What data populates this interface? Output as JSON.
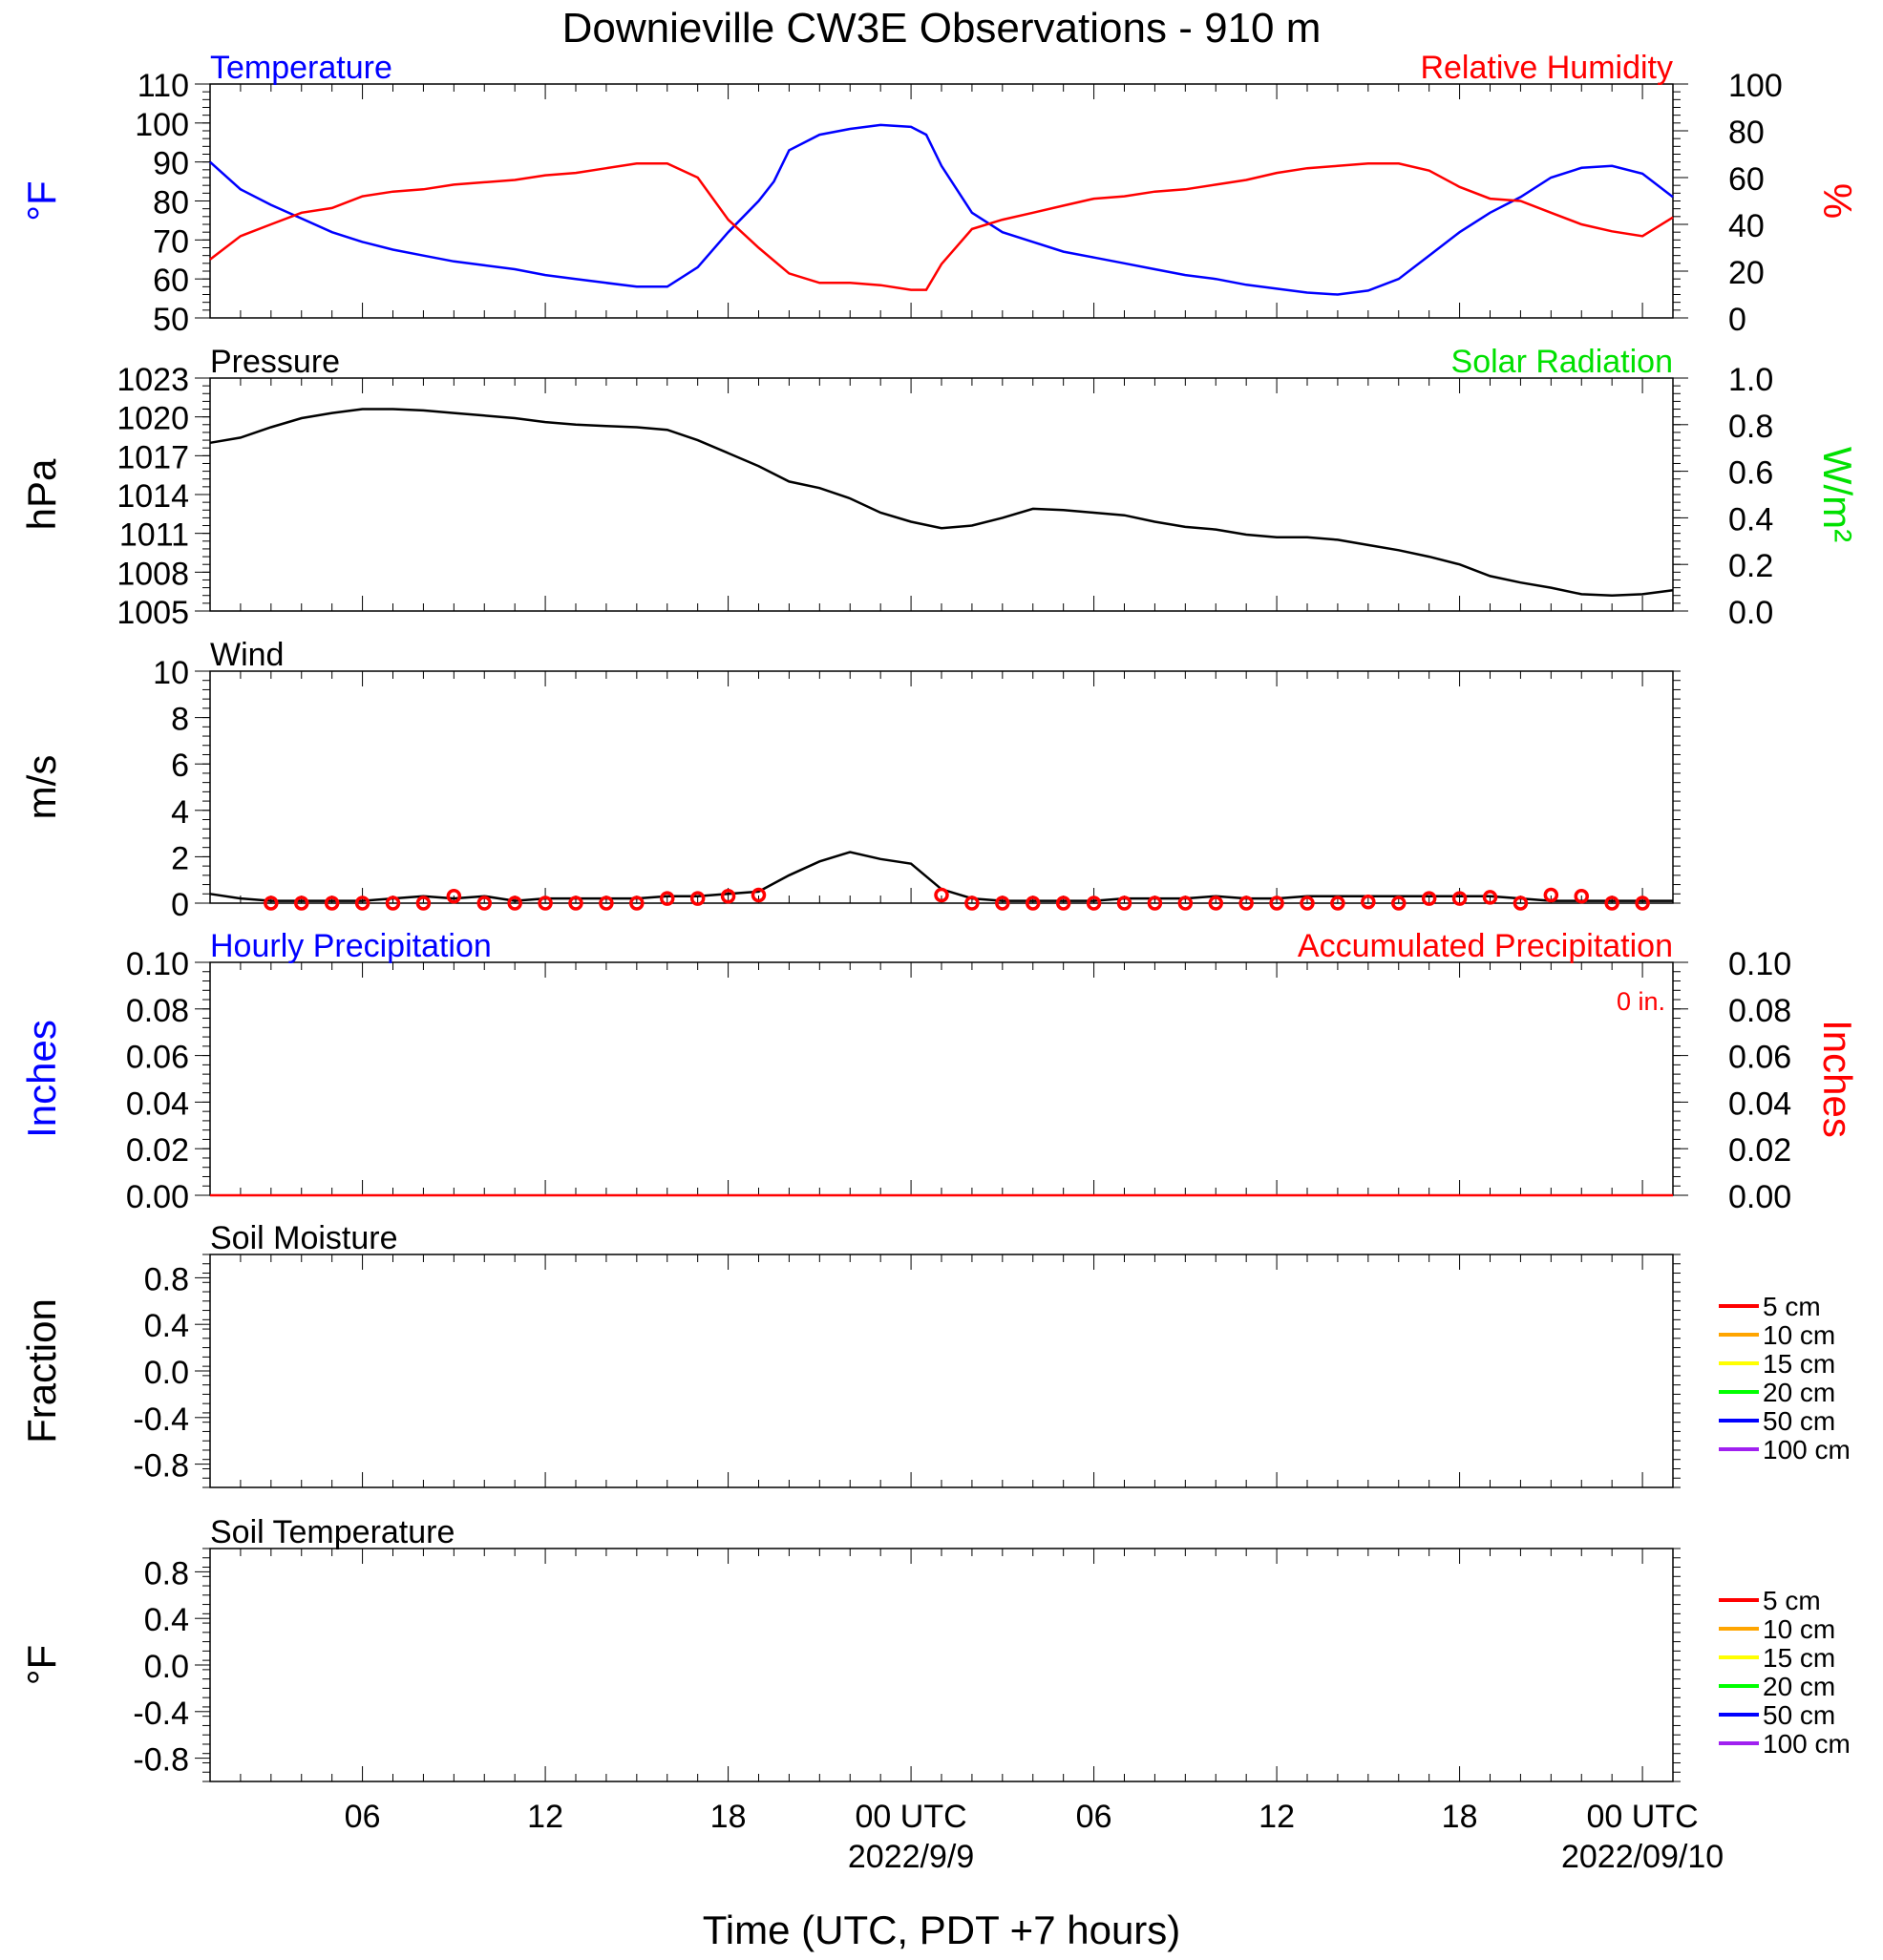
{
  "title": "Downieville CW3E Observations - 910 m",
  "x_axis": {
    "title": "Time (UTC, PDT +7 hours)",
    "range_hours": [
      0,
      48
    ],
    "tick_hours": [
      5,
      11,
      17,
      23,
      29,
      35,
      41,
      47
    ],
    "tick_labels": [
      "06",
      "12",
      "18",
      "00 UTC",
      "06",
      "12",
      "18",
      "00 UTC"
    ],
    "date_labels": [
      {
        "hour": 23,
        "text": "2022/9/9"
      },
      {
        "hour": 47,
        "text": "2022/09/10"
      }
    ]
  },
  "colors": {
    "blue": "#0000ff",
    "red": "#ff0000",
    "green": "#00e000",
    "black": "#000000"
  },
  "chart_data": [
    {
      "type": "line",
      "panel": "temperature-humidity",
      "left_title": "Temperature",
      "right_title": "Relative Humidity",
      "ylabel": "°F",
      "ylabel_right": "%",
      "ylim": [
        50,
        110
      ],
      "yticks": [
        50,
        60,
        70,
        80,
        90,
        100,
        110
      ],
      "ylim_right": [
        0,
        100
      ],
      "yticks_right": [
        0,
        20,
        40,
        60,
        80,
        100
      ],
      "series": [
        {
          "name": "Temperature",
          "axis": "left",
          "color": "#0000ff",
          "x": [
            0,
            1,
            2,
            3,
            4,
            5,
            6,
            7,
            8,
            9,
            10,
            11,
            12,
            13,
            14,
            15,
            16,
            17,
            18,
            18.5,
            19,
            20,
            21,
            22,
            23,
            23.5,
            24,
            25,
            26,
            27,
            28,
            29,
            30,
            31,
            32,
            33,
            34,
            35,
            36,
            37,
            38,
            39,
            40,
            41,
            42,
            43,
            44,
            45,
            46,
            47,
            48
          ],
          "y": [
            90,
            83,
            79,
            75.5,
            72,
            69.5,
            67.5,
            66,
            64.5,
            63.5,
            62.5,
            61,
            60,
            59,
            58,
            58,
            63,
            72,
            80,
            85,
            93,
            97,
            98.5,
            99.5,
            99,
            97,
            89,
            77,
            72,
            69.5,
            67,
            65.5,
            64,
            62.5,
            61,
            60,
            58.5,
            57.5,
            56.5,
            56,
            57,
            60,
            66,
            72,
            77,
            81,
            86,
            88.5,
            89,
            87,
            81
          ]
        },
        {
          "name": "Relative Humidity",
          "axis": "right",
          "color": "#ff0000",
          "x": [
            0,
            1,
            2,
            3,
            4,
            5,
            6,
            7,
            8,
            9,
            10,
            11,
            12,
            13,
            14,
            15,
            16,
            17,
            18,
            19,
            20,
            21,
            22,
            23,
            23.5,
            24,
            25,
            26,
            27,
            28,
            29,
            30,
            31,
            32,
            33,
            34,
            35,
            36,
            37,
            38,
            39,
            40,
            41,
            42,
            43,
            44,
            45,
            46,
            47,
            48
          ],
          "y": [
            25,
            35,
            40,
            45,
            47,
            52,
            54,
            55,
            57,
            58,
            59,
            61,
            62,
            64,
            66,
            66,
            60,
            42,
            30,
            19,
            15,
            15,
            14,
            12,
            12,
            23,
            38,
            42,
            45,
            48,
            51,
            52,
            54,
            55,
            57,
            59,
            62,
            64,
            65,
            66,
            66,
            63,
            56,
            51,
            50,
            45,
            40,
            37,
            35,
            43
          ]
        }
      ]
    },
    {
      "type": "line",
      "panel": "pressure-solar",
      "left_title": "Pressure",
      "right_title": "Solar Radiation",
      "ylabel": "hPa",
      "ylabel_right": "W/m²",
      "ylim": [
        1005,
        1023
      ],
      "yticks": [
        1005,
        1008,
        1011,
        1014,
        1017,
        1020,
        1023
      ],
      "ylim_right": [
        0.0,
        1.0
      ],
      "yticks_right": [
        "0.0",
        "0.2",
        "0.4",
        "0.6",
        "0.8",
        "1.0"
      ],
      "series": [
        {
          "name": "Pressure",
          "axis": "left",
          "color": "#000000",
          "x": [
            0,
            1,
            2,
            3,
            4,
            5,
            6,
            7,
            8,
            9,
            10,
            11,
            12,
            13,
            14,
            15,
            16,
            17,
            18,
            19,
            20,
            21,
            22,
            23,
            24,
            25,
            26,
            27,
            28,
            29,
            30,
            31,
            32,
            33,
            34,
            35,
            36,
            37,
            38,
            39,
            40,
            41,
            42,
            43,
            44,
            45,
            46,
            47,
            48
          ],
          "y": [
            1018,
            1018.4,
            1019.2,
            1019.9,
            1020.3,
            1020.6,
            1020.6,
            1020.5,
            1020.3,
            1020.1,
            1019.9,
            1019.6,
            1019.4,
            1019.3,
            1019.2,
            1019,
            1018.2,
            1017.2,
            1016.2,
            1015,
            1014.5,
            1013.7,
            1012.6,
            1011.9,
            1011.4,
            1011.6,
            1012.2,
            1012.9,
            1012.8,
            1012.6,
            1012.4,
            1011.9,
            1011.5,
            1011.3,
            1010.9,
            1010.7,
            1010.7,
            1010.5,
            1010.1,
            1009.7,
            1009.2,
            1008.6,
            1007.7,
            1007.2,
            1006.8,
            1006.3,
            1006.2,
            1006.3,
            1006.6
          ]
        }
      ]
    },
    {
      "type": "line",
      "panel": "wind",
      "left_title": "Wind",
      "ylabel": "m/s",
      "ylim": [
        0,
        10
      ],
      "yticks": [
        0,
        2,
        4,
        6,
        8,
        10
      ],
      "series": [
        {
          "name": "Wind speed",
          "axis": "left",
          "color": "#000000",
          "x": [
            0,
            1,
            2,
            3,
            4,
            5,
            6,
            7,
            8,
            9,
            10,
            11,
            12,
            13,
            14,
            15,
            16,
            17,
            18,
            19,
            20,
            21,
            22,
            23,
            24,
            25,
            26,
            27,
            28,
            29,
            30,
            31,
            32,
            33,
            34,
            35,
            36,
            37,
            38,
            39,
            40,
            41,
            42,
            43,
            44,
            45,
            46,
            47,
            48
          ],
          "y": [
            0.4,
            0.2,
            0.1,
            0.1,
            0.1,
            0.1,
            0.2,
            0.3,
            0.2,
            0.3,
            0.1,
            0.2,
            0.2,
            0.2,
            0.2,
            0.3,
            0.3,
            0.4,
            0.5,
            1.2,
            1.8,
            2.2,
            1.9,
            1.7,
            0.6,
            0.2,
            0.1,
            0.1,
            0.1,
            0.1,
            0.2,
            0.2,
            0.2,
            0.3,
            0.2,
            0.2,
            0.3,
            0.3,
            0.3,
            0.3,
            0.3,
            0.3,
            0.3,
            0.2,
            0.1,
            0.1,
            0.1,
            0.1,
            0.1
          ]
        },
        {
          "name": "Hourly mean",
          "axis": "left",
          "color": "#ff0000",
          "marker": "circle",
          "x": [
            2,
            3,
            4,
            5,
            6,
            7,
            8,
            9,
            10,
            11,
            12,
            13,
            14,
            15,
            16,
            17,
            18,
            24,
            25,
            26,
            27,
            28,
            29,
            30,
            31,
            32,
            33,
            34,
            35,
            36,
            37,
            38,
            39,
            40,
            41,
            42,
            43,
            44,
            45,
            46,
            47
          ],
          "y": [
            0.0,
            0.0,
            0.0,
            0.0,
            0.0,
            0.0,
            0.3,
            0.0,
            0.0,
            0.0,
            0.0,
            0.0,
            0.0,
            0.2,
            0.2,
            0.3,
            0.35,
            0.35,
            0.0,
            0.0,
            0.0,
            0.0,
            0.0,
            0.0,
            0.0,
            0.0,
            0.0,
            0.0,
            0.0,
            0.0,
            0.0,
            0.05,
            0.0,
            0.2,
            0.2,
            0.25,
            0.0,
            0.35,
            0.3,
            0.0,
            0.0
          ]
        }
      ]
    },
    {
      "type": "line",
      "panel": "precipitation",
      "left_title": "Hourly Precipitation",
      "right_title": "Accumulated Precipitation",
      "annotation": "0 in.",
      "ylabel": "Inches",
      "ylabel_right": "Inches",
      "ylim": [
        0,
        0.1
      ],
      "yticks": [
        "0.00",
        "0.02",
        "0.04",
        "0.06",
        "0.08",
        "0.10"
      ],
      "ylim_right": [
        0,
        0.1
      ],
      "yticks_right": [
        "0.00",
        "0.02",
        "0.04",
        "0.06",
        "0.08",
        "0.10"
      ],
      "series": [
        {
          "name": "Accumulated Precipitation",
          "axis": "right",
          "color": "#ff0000",
          "x": [
            0,
            48
          ],
          "y": [
            0,
            0
          ]
        }
      ]
    },
    {
      "type": "line",
      "panel": "soil-moisture",
      "left_title": "Soil Moisture",
      "ylabel": "Fraction",
      "ylim": [
        -1,
        1
      ],
      "yticks": [
        "-0.8",
        "-0.4",
        "0.0",
        "0.4",
        "0.8"
      ],
      "legend": [
        {
          "label": "5 cm",
          "color": "#ff0000"
        },
        {
          "label": "10 cm",
          "color": "#ffa500"
        },
        {
          "label": "15 cm",
          "color": "#ffff00"
        },
        {
          "label": "20 cm",
          "color": "#00ff00"
        },
        {
          "label": "50 cm",
          "color": "#0000ff"
        },
        {
          "label": "100 cm",
          "color": "#a020f0"
        }
      ],
      "series": []
    },
    {
      "type": "line",
      "panel": "soil-temperature",
      "left_title": "Soil Temperature",
      "ylabel": "°F",
      "ylim": [
        -1,
        1
      ],
      "yticks": [
        "-0.8",
        "-0.4",
        "0.0",
        "0.4",
        "0.8"
      ],
      "legend": [
        {
          "label": "5 cm",
          "color": "#ff0000"
        },
        {
          "label": "10 cm",
          "color": "#ffa500"
        },
        {
          "label": "15 cm",
          "color": "#ffff00"
        },
        {
          "label": "20 cm",
          "color": "#00ff00"
        },
        {
          "label": "50 cm",
          "color": "#0000ff"
        },
        {
          "label": "100 cm",
          "color": "#a020f0"
        }
      ],
      "series": []
    }
  ]
}
